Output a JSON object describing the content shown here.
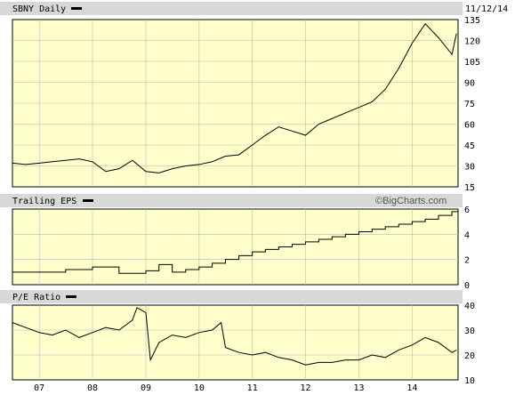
{
  "chart_data": [
    {
      "type": "line",
      "title": "SBNY Daily",
      "date": "11/12/14",
      "ylim": [
        15,
        135
      ],
      "yticks": [
        15,
        30,
        45,
        60,
        75,
        90,
        105,
        120,
        135
      ],
      "x": [
        "2006-07",
        "2006-10",
        "2007-01",
        "2007-04",
        "2007-07",
        "2007-10",
        "2008-01",
        "2008-04",
        "2008-07",
        "2008-10",
        "2009-01",
        "2009-04",
        "2009-07",
        "2009-10",
        "2010-01",
        "2010-04",
        "2010-07",
        "2010-10",
        "2011-01",
        "2011-04",
        "2011-07",
        "2011-10",
        "2012-01",
        "2012-04",
        "2012-07",
        "2012-10",
        "2013-01",
        "2013-04",
        "2013-07",
        "2013-10",
        "2014-01",
        "2014-04",
        "2014-07",
        "2014-10",
        "2014-11"
      ],
      "values": [
        32,
        31,
        32,
        33,
        34,
        35,
        33,
        26,
        28,
        34,
        26,
        25,
        28,
        30,
        31,
        33,
        37,
        38,
        45,
        52,
        58,
        55,
        52,
        60,
        64,
        68,
        72,
        76,
        85,
        100,
        118,
        132,
        122,
        110,
        125
      ]
    },
    {
      "type": "line",
      "title": "Trailing EPS",
      "watermark": "©BigCharts.com",
      "ylim": [
        0,
        6
      ],
      "yticks": [
        0,
        2,
        4,
        6
      ],
      "x": [
        "2006-07",
        "2007-07",
        "2008-01",
        "2008-07",
        "2009-01",
        "2009-04",
        "2009-07",
        "2009-10",
        "2010-01",
        "2010-04",
        "2010-07",
        "2010-10",
        "2011-01",
        "2011-04",
        "2011-07",
        "2011-10",
        "2012-01",
        "2012-04",
        "2012-07",
        "2012-10",
        "2013-01",
        "2013-04",
        "2013-07",
        "2013-10",
        "2014-01",
        "2014-04",
        "2014-07",
        "2014-10"
      ],
      "values": [
        1.0,
        1.2,
        1.4,
        0.9,
        1.1,
        1.6,
        1.0,
        1.2,
        1.4,
        1.7,
        2.0,
        2.3,
        2.6,
        2.8,
        3.0,
        3.2,
        3.4,
        3.6,
        3.8,
        4.0,
        4.2,
        4.4,
        4.6,
        4.8,
        5.0,
        5.2,
        5.5,
        5.8
      ]
    },
    {
      "type": "line",
      "title": "P/E Ratio",
      "ylim": [
        10,
        40
      ],
      "yticks": [
        10,
        20,
        30,
        40
      ],
      "x": [
        "2006-07",
        "2006-10",
        "2007-01",
        "2007-04",
        "2007-07",
        "2007-10",
        "2008-01",
        "2008-04",
        "2008-07",
        "2008-10",
        "2008-11",
        "2009-01",
        "2009-02",
        "2009-04",
        "2009-07",
        "2009-10",
        "2010-01",
        "2010-04",
        "2010-06",
        "2010-07",
        "2010-10",
        "2011-01",
        "2011-04",
        "2011-07",
        "2011-10",
        "2012-01",
        "2012-04",
        "2012-07",
        "2012-10",
        "2013-01",
        "2013-04",
        "2013-07",
        "2013-10",
        "2014-01",
        "2014-04",
        "2014-07",
        "2014-10",
        "2014-11"
      ],
      "values": [
        33,
        31,
        29,
        28,
        30,
        27,
        29,
        31,
        30,
        34,
        39,
        37,
        18,
        25,
        28,
        27,
        29,
        30,
        33,
        23,
        21,
        20,
        21,
        19,
        18,
        16,
        17,
        17,
        18,
        18,
        20,
        19,
        22,
        24,
        27,
        25,
        21,
        22
      ]
    }
  ],
  "x_axis": {
    "labels": [
      "07",
      "08",
      "09",
      "10",
      "11",
      "12",
      "13",
      "14"
    ]
  }
}
